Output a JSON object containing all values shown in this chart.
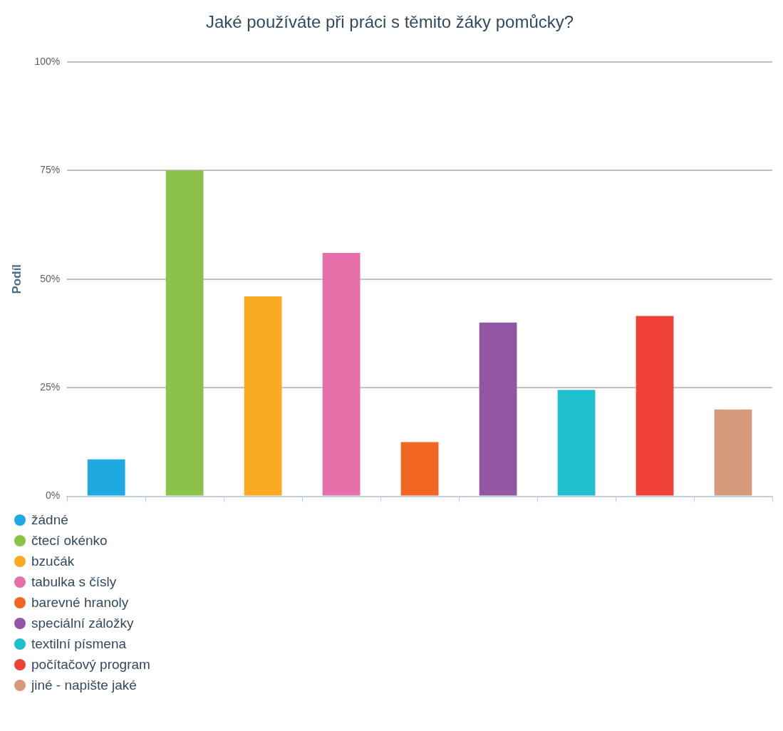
{
  "chart_data": {
    "type": "bar",
    "title": "Jaké používáte při práci s těmito žáky pomůcky?",
    "ylabel": "Podíl",
    "categories": [
      null,
      null,
      null,
      null,
      null,
      null,
      null,
      null,
      null
    ],
    "series": [
      {
        "name": "žádné",
        "color": "#1fa9e1",
        "values": [
          8.5,
          null,
          null,
          null,
          null,
          null,
          null,
          null,
          null
        ]
      },
      {
        "name": "čtecí okénko",
        "color": "#8bc34a",
        "values": [
          null,
          75,
          null,
          null,
          null,
          null,
          null,
          null,
          null
        ]
      },
      {
        "name": "bzučák",
        "color": "#fbab22",
        "values": [
          null,
          null,
          46,
          null,
          null,
          null,
          null,
          null,
          null
        ]
      },
      {
        "name": "tabulka s čísly",
        "color": "#e770aa",
        "values": [
          null,
          null,
          null,
          56,
          null,
          null,
          null,
          null,
          null
        ]
      },
      {
        "name": "barevné hranoly",
        "color": "#f26522",
        "values": [
          null,
          null,
          null,
          null,
          12.5,
          null,
          null,
          null,
          null
        ]
      },
      {
        "name": "speciální záložky",
        "color": "#9157a2",
        "values": [
          null,
          null,
          null,
          null,
          null,
          40,
          null,
          null,
          null
        ]
      },
      {
        "name": "textilní písmena",
        "color": "#1fbfd0",
        "values": [
          null,
          null,
          null,
          null,
          null,
          null,
          24.5,
          null,
          null
        ]
      },
      {
        "name": "počítačový program",
        "color": "#ef4136",
        "values": [
          null,
          null,
          null,
          null,
          null,
          null,
          null,
          41.5,
          null
        ]
      },
      {
        "name": "jiné - napište jaké",
        "color": "#d69b7c",
        "values": [
          null,
          null,
          null,
          null,
          null,
          null,
          null,
          null,
          20
        ]
      }
    ],
    "ylim": [
      0,
      100
    ],
    "yticks": [
      {
        "value": 0,
        "label": "0%"
      },
      {
        "value": 25,
        "label": "25%"
      },
      {
        "value": 50,
        "label": "50%"
      },
      {
        "value": 75,
        "label": "75%"
      },
      {
        "value": 100,
        "label": "100%"
      }
    ],
    "grid": "y",
    "legend": "bottom left",
    "tick_labels": "y"
  }
}
